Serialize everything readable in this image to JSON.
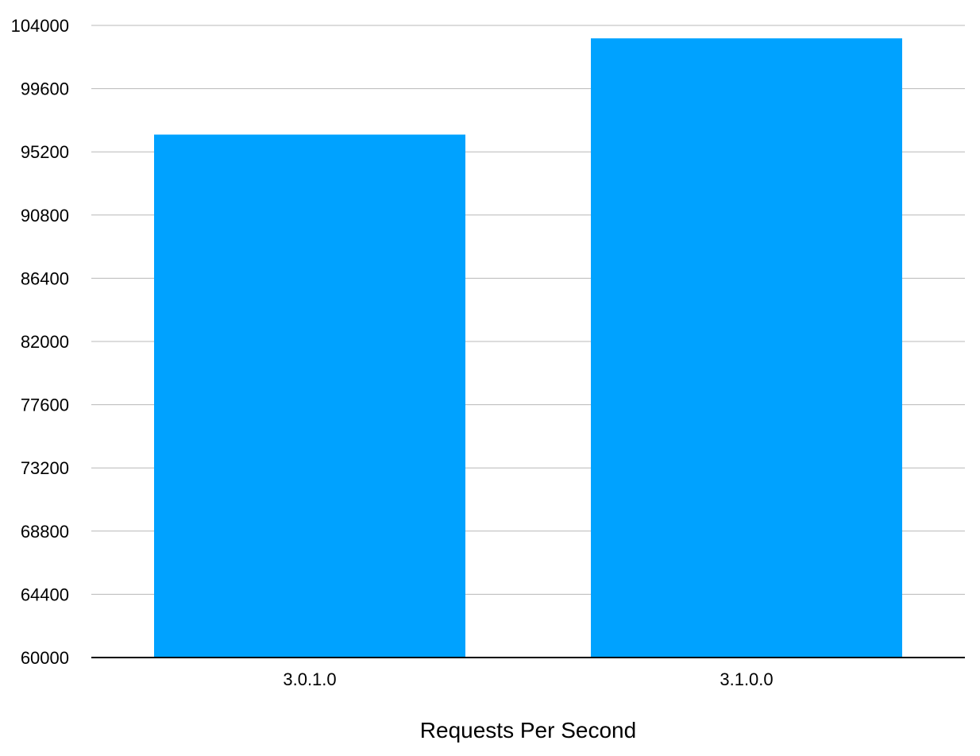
{
  "chart_data": {
    "type": "bar",
    "categories": [
      "3.0.1.0",
      "3.1.0.0"
    ],
    "series": [
      {
        "values": [
          96400,
          103100
        ]
      }
    ],
    "title": "",
    "xlabel": "Requests Per Second",
    "ylabel": "",
    "ylim": [
      60000,
      104000
    ],
    "yticks": [
      "104000",
      "99600",
      "95200",
      "90800",
      "86400",
      "82000",
      "77600",
      "73200",
      "68800",
      "64400",
      "60000"
    ],
    "grid": true,
    "legend": "none",
    "bar_color": "#00a2ff",
    "grid_color": "#b8b8b8",
    "axis_color": "#000000"
  }
}
